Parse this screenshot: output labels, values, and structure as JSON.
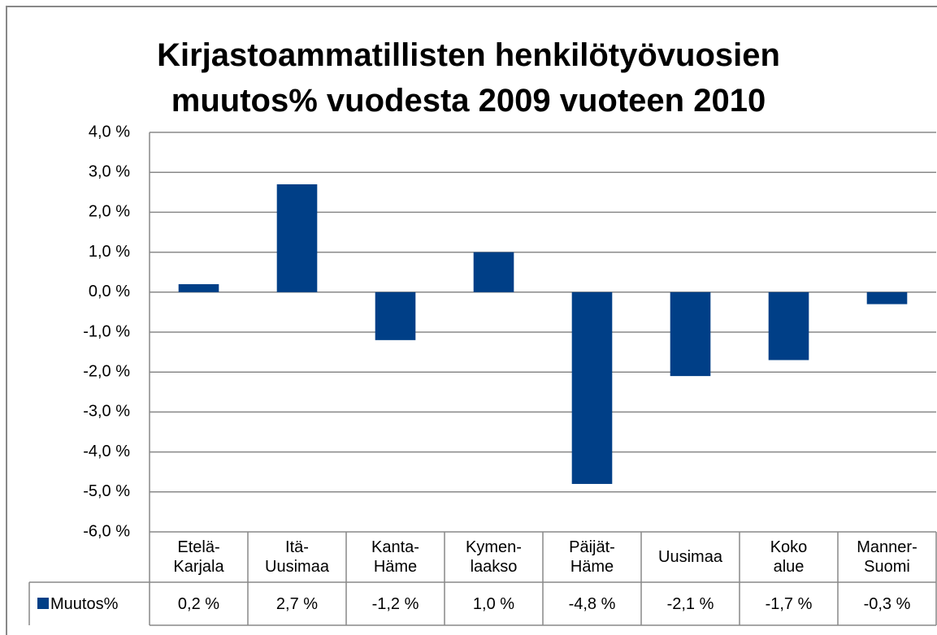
{
  "chart_data": {
    "type": "bar",
    "title": "Kirjastoammatillisten henkilötyövuosien\nmuutos% vuodesta 2009 vuoteen 2010",
    "categories": [
      "Etelä-\nKarjala",
      "Itä-\nUusimaa",
      "Kanta-\nHäme",
      "Kymen-\nlaakso",
      "Päijät-\nHäme",
      "Uusimaa",
      "Koko\nalue",
      "Manner-\nSuomi"
    ],
    "series": [
      {
        "name": "Muutos%",
        "color": "#003f87",
        "values": [
          0.2,
          2.7,
          -1.2,
          1.0,
          -4.8,
          -2.1,
          -1.7,
          -0.3
        ],
        "value_labels": [
          "0,2 %",
          "2,7 %",
          "-1,2 %",
          "1,0 %",
          "-4,8 %",
          "-2,1 %",
          "-1,7 %",
          "-0,3 %"
        ]
      }
    ],
    "ylim": [
      -6,
      4
    ],
    "yticks": [
      {
        "value": -6,
        "label": "-6,0 %"
      },
      {
        "value": -5,
        "label": "-5,0 %"
      },
      {
        "value": -4,
        "label": "-4,0 %"
      },
      {
        "value": -3,
        "label": "-3,0 %"
      },
      {
        "value": -2,
        "label": "-2,0 %"
      },
      {
        "value": -1,
        "label": "-1,0 %"
      },
      {
        "value": 0,
        "label": "0,0 %"
      },
      {
        "value": 1,
        "label": "1,0 %"
      },
      {
        "value": 2,
        "label": "2,0 %"
      },
      {
        "value": 3,
        "label": "3,0 %"
      },
      {
        "value": 4,
        "label": "4,0 %"
      }
    ],
    "grid": true
  }
}
